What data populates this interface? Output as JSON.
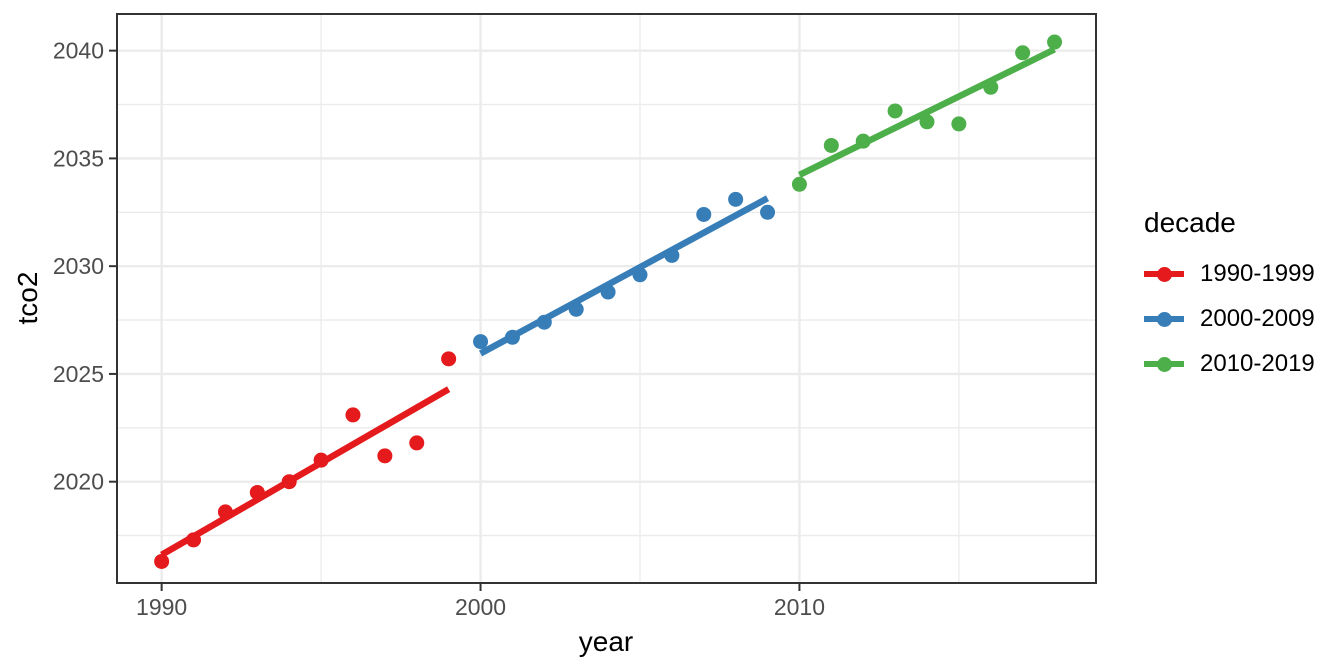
{
  "chart_data": {
    "type": "scatter",
    "title": "",
    "xlabel": "year",
    "ylabel": "tco2",
    "xlim": [
      1988.6,
      2019.3
    ],
    "ylim": [
      2015.3,
      2041.7
    ],
    "x_ticks": [
      1990,
      2000,
      2010
    ],
    "x_minor_ticks": [
      1995,
      2005,
      2015
    ],
    "y_ticks": [
      2020,
      2025,
      2030,
      2035,
      2040
    ],
    "y_minor_ticks": [
      2017.5,
      2022.5,
      2027.5,
      2032.5,
      2037.5
    ],
    "grid": true,
    "legend_position": "right",
    "legend_title": "decade",
    "fit": "linear-regression-per-series",
    "series": [
      {
        "name": "1990-1999",
        "color": "#E41A1C",
        "x": [
          1990,
          1991,
          1992,
          1993,
          1994,
          1995,
          1996,
          1997,
          1998,
          1999
        ],
        "y": [
          2016.3,
          2017.3,
          2018.6,
          2019.5,
          2020.0,
          2021.0,
          2023.1,
          2021.2,
          2021.8,
          2025.7
        ]
      },
      {
        "name": "2000-2009",
        "color": "#377EB8",
        "x": [
          2000,
          2001,
          2002,
          2003,
          2004,
          2005,
          2006,
          2007,
          2008,
          2009
        ],
        "y": [
          2026.5,
          2026.7,
          2027.4,
          2028.0,
          2028.8,
          2029.6,
          2030.5,
          2032.4,
          2033.1,
          2032.5
        ]
      },
      {
        "name": "2010-2019",
        "color": "#4DAF4A",
        "x": [
          2010,
          2011,
          2012,
          2013,
          2014,
          2015,
          2016,
          2017,
          2018
        ],
        "y": [
          2033.8,
          2035.6,
          2035.8,
          2037.2,
          2036.7,
          2036.6,
          2038.3,
          2039.9,
          2040.4
        ]
      }
    ]
  },
  "legend": {
    "title": "decade",
    "items": [
      {
        "label": "1990-1999",
        "color": "#E41A1C"
      },
      {
        "label": "2000-2009",
        "color": "#377EB8"
      },
      {
        "label": "2010-2019",
        "color": "#4DAF4A"
      }
    ]
  },
  "colors": {
    "background": "#FFFFFF",
    "gridline": "#EBEBEB",
    "panel_border": "#333333",
    "tick_mark": "#333333",
    "tick_label": "#4D4D4D",
    "axis_title": "#000000",
    "red": "#E41A1C",
    "blue": "#377EB8",
    "green": "#4DAF4A"
  }
}
